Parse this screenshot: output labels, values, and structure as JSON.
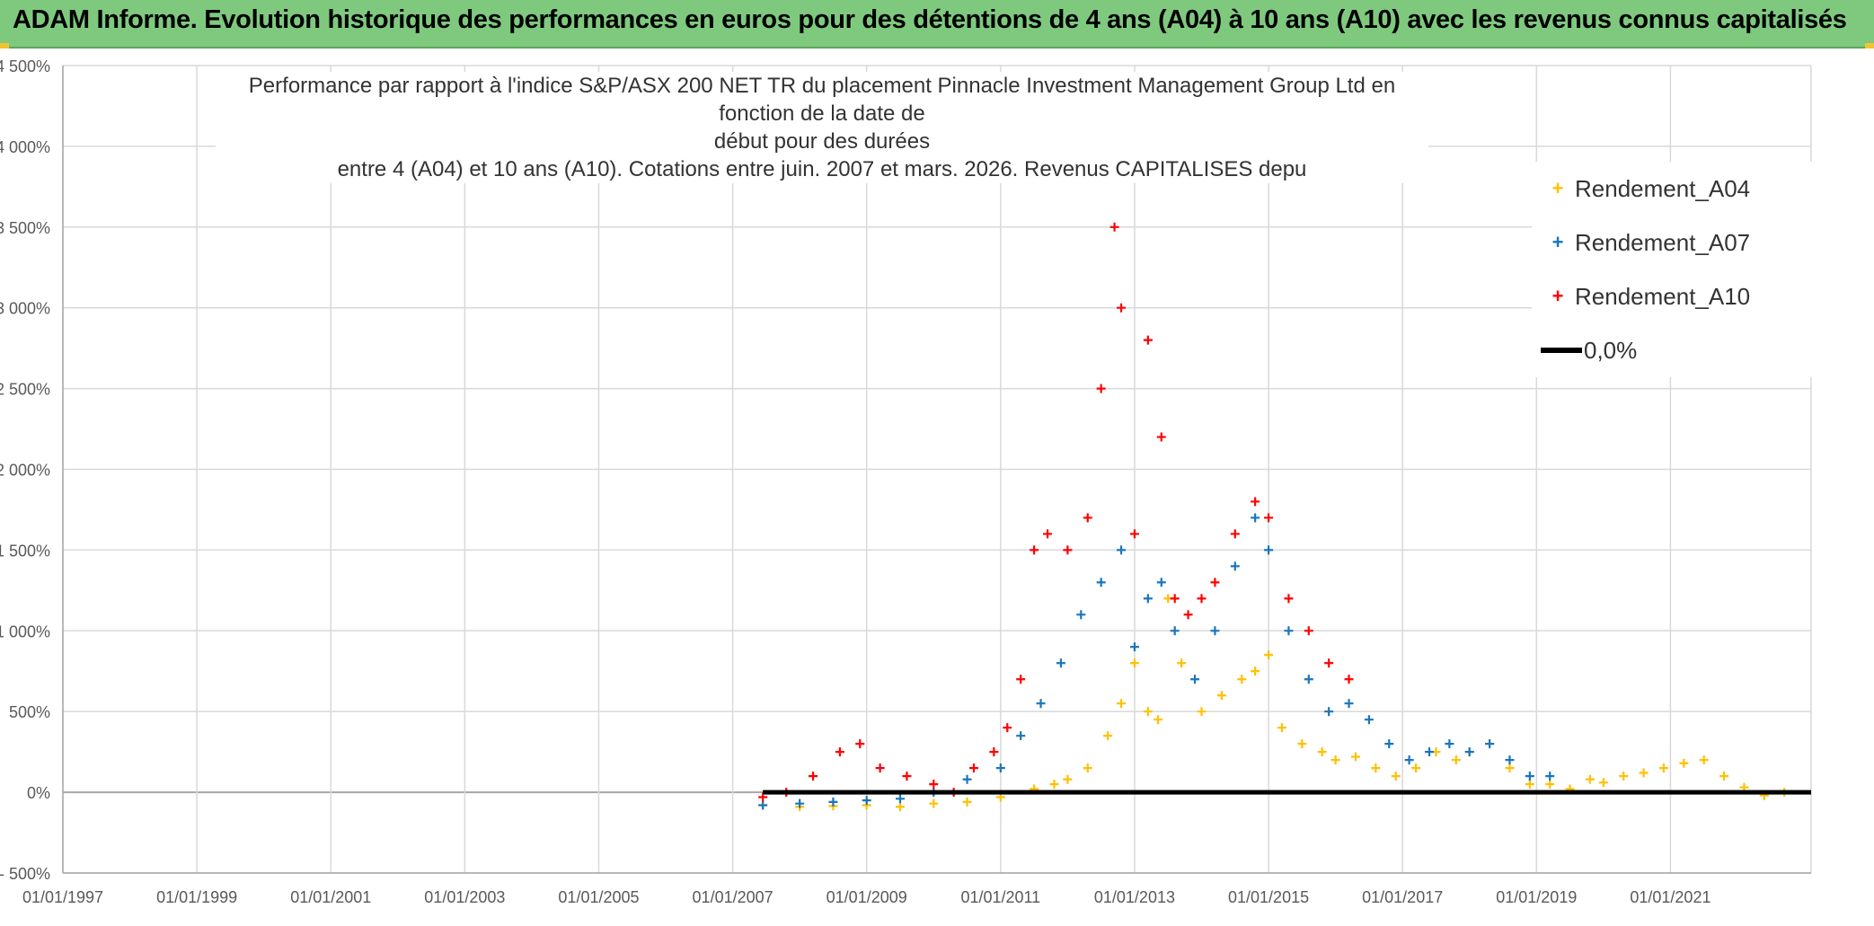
{
  "header": {
    "title": "ADAM Informe. Evolution historique des performances en euros pour des détentions de 4 ans (A04) à 10 ans (A10) avec les revenus connus capitalisés"
  },
  "chart_data": {
    "type": "scatter",
    "title_lines": [
      "Performance par rapport à l'indice S&P/ASX 200 NET TR  du placement Pinnacle Investment Management Group Ltd en fonction de la date de",
      "début pour des durées",
      "entre 4 (A04) et 10 ans (A10). Cotations entre juin. 2007 et mars. 2026. Revenus CAPITALISES depu"
    ],
    "xlabel": "",
    "ylabel": "",
    "x_range": [
      1997.0,
      2023.1
    ],
    "y_range": [
      -500,
      4500
    ],
    "y_ticks": [
      -500,
      0,
      500,
      1000,
      1500,
      2000,
      2500,
      3000,
      3500,
      4000,
      4500
    ],
    "y_tick_labels": [
      "- 500%",
      "0%",
      "500%",
      "1 000%",
      "1 500%",
      "2 000%",
      "2 500%",
      "3 000%",
      "3 500%",
      "4 000%",
      "4 500%"
    ],
    "x_ticks": [
      1997,
      1999,
      2001,
      2003,
      2005,
      2007,
      2009,
      2011,
      2013,
      2015,
      2017,
      2019,
      2021
    ],
    "x_tick_labels": [
      "01/01/1997",
      "01/01/1999",
      "01/01/2001",
      "01/01/2003",
      "01/01/2005",
      "01/01/2007",
      "01/01/2009",
      "01/01/2011",
      "01/01/2013",
      "01/01/2015",
      "01/01/2017",
      "01/01/2019",
      "01/01/2021"
    ],
    "grid": true,
    "legend_position": "top-right",
    "series": [
      {
        "name": "Rendement_A04",
        "color": "#ffc000",
        "marker": "+",
        "x": [
          2007.45,
          2008.0,
          2008.5,
          2009.0,
          2009.5,
          2010.0,
          2010.5,
          2011.0,
          2011.5,
          2011.8,
          2012.0,
          2012.3,
          2012.6,
          2012.8,
          2013.0,
          2013.2,
          2013.35,
          2013.5,
          2013.7,
          2014.0,
          2014.3,
          2014.6,
          2014.8,
          2015.0,
          2015.2,
          2015.5,
          2015.8,
          2016.0,
          2016.3,
          2016.6,
          2016.9,
          2017.2,
          2017.5,
          2017.8,
          2018.0,
          2018.3,
          2018.6,
          2018.9,
          2019.2,
          2019.5,
          2019.8,
          2020.0,
          2020.3,
          2020.6,
          2020.9,
          2021.2,
          2021.5,
          2021.8,
          2022.1,
          2022.4,
          2022.7
        ],
        "y": [
          -80,
          -90,
          -85,
          -80,
          -90,
          -70,
          -60,
          -30,
          20,
          50,
          80,
          150,
          350,
          550,
          800,
          500,
          450,
          1200,
          800,
          500,
          600,
          700,
          750,
          850,
          400,
          300,
          250,
          200,
          220,
          150,
          100,
          150,
          250,
          200,
          250,
          300,
          150,
          50,
          50,
          20,
          80,
          60,
          100,
          120,
          150,
          180,
          200,
          100,
          30,
          -20,
          0
        ]
      },
      {
        "name": "Rendement_A07",
        "color": "#1a75bc",
        "marker": "+",
        "x": [
          2007.45,
          2008.0,
          2008.5,
          2009.0,
          2009.5,
          2010.0,
          2010.5,
          2011.0,
          2011.3,
          2011.6,
          2011.9,
          2012.2,
          2012.5,
          2012.8,
          2013.0,
          2013.2,
          2013.4,
          2013.6,
          2013.9,
          2014.2,
          2014.5,
          2014.8,
          2015.0,
          2015.3,
          2015.6,
          2015.9,
          2016.2,
          2016.5,
          2016.8,
          2017.1,
          2017.4,
          2017.7,
          2018.0,
          2018.3,
          2018.6,
          2018.9,
          2019.2
        ],
        "y": [
          -80,
          -70,
          -60,
          -50,
          -40,
          0,
          80,
          150,
          350,
          550,
          800,
          1100,
          1300,
          1500,
          900,
          1200,
          1300,
          1000,
          700,
          1000,
          1400,
          1700,
          1500,
          1000,
          700,
          500,
          550,
          450,
          300,
          200,
          250,
          300,
          250,
          300,
          200,
          100,
          100
        ]
      },
      {
        "name": "Rendement_A10",
        "color": "#ff0000",
        "marker": "+",
        "x": [
          2007.45,
          2007.8,
          2008.2,
          2008.6,
          2008.9,
          2009.2,
          2009.6,
          2010.0,
          2010.3,
          2010.6,
          2010.9,
          2011.1,
          2011.3,
          2011.5,
          2011.7,
          2012.0,
          2012.3,
          2012.5,
          2012.7,
          2012.8,
          2013.0,
          2013.2,
          2013.4,
          2013.6,
          2013.8,
          2014.0,
          2014.2,
          2014.5,
          2014.8,
          2015.0,
          2015.3,
          2015.6,
          2015.9,
          2016.2
        ],
        "y": [
          -30,
          0,
          100,
          250,
          300,
          150,
          100,
          50,
          0,
          150,
          250,
          400,
          700,
          1500,
          1600,
          1500,
          1700,
          2500,
          3500,
          3000,
          1600,
          2800,
          2200,
          1200,
          1100,
          1200,
          1300,
          1600,
          1800,
          1700,
          1200,
          1000,
          800,
          700
        ]
      },
      {
        "name": "0,0%",
        "color": "#000000",
        "marker": "line",
        "x": [
          2007.45,
          2023.1
        ],
        "y": [
          0,
          0
        ]
      }
    ]
  }
}
